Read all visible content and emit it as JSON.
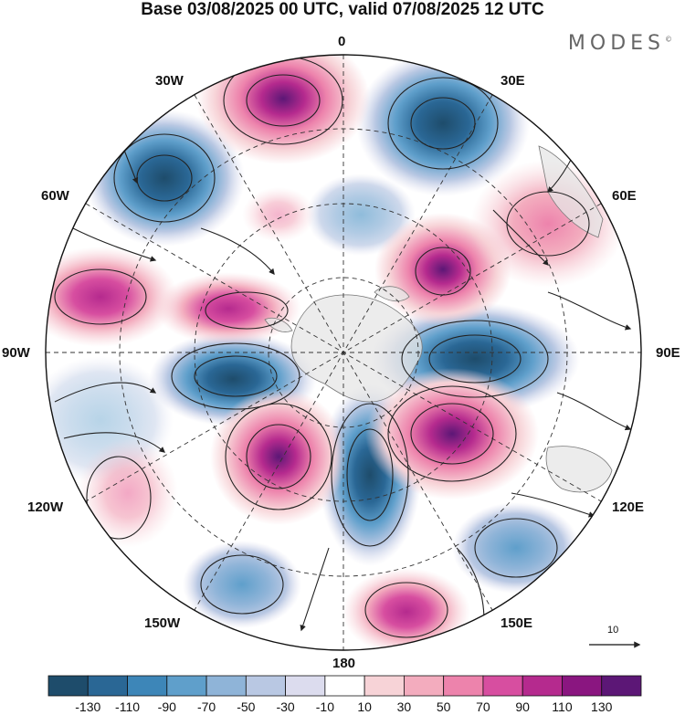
{
  "title": "Base 03/08/2025 00 UTC, valid 07/08/2025 12 UTC",
  "brand": "MODES",
  "brand_mark": "©",
  "longitudes": {
    "lon_0": "0",
    "lon_30e": "30E",
    "lon_60e": "60E",
    "lon_90e": "90E",
    "lon_120e": "120E",
    "lon_150e": "150E",
    "lon_180": "180",
    "lon_150w": "150W",
    "lon_120w": "120W",
    "lon_90w": "90W",
    "lon_60w": "60W",
    "lon_30w": "30W"
  },
  "reference_vector": "10",
  "colorbar": {
    "labels": [
      "-130",
      "-110",
      "-90",
      "-70",
      "-50",
      "-30",
      "-10",
      "10",
      "30",
      "50",
      "70",
      "90",
      "110",
      "130"
    ],
    "colors": [
      "#1e4c6b",
      "#2a6795",
      "#3d86b8",
      "#5f9fcb",
      "#8fb4d8",
      "#b9c8e3",
      "#dcdcee",
      "#ffffff",
      "#f7d3d7",
      "#f3acbe",
      "#ed83ac",
      "#d74ea0",
      "#b52a8e",
      "#8a1680",
      "#5c1776"
    ]
  },
  "map_colors": {
    "land": "#e5e5e5",
    "grid": "#333333",
    "stream": "#222222"
  }
}
